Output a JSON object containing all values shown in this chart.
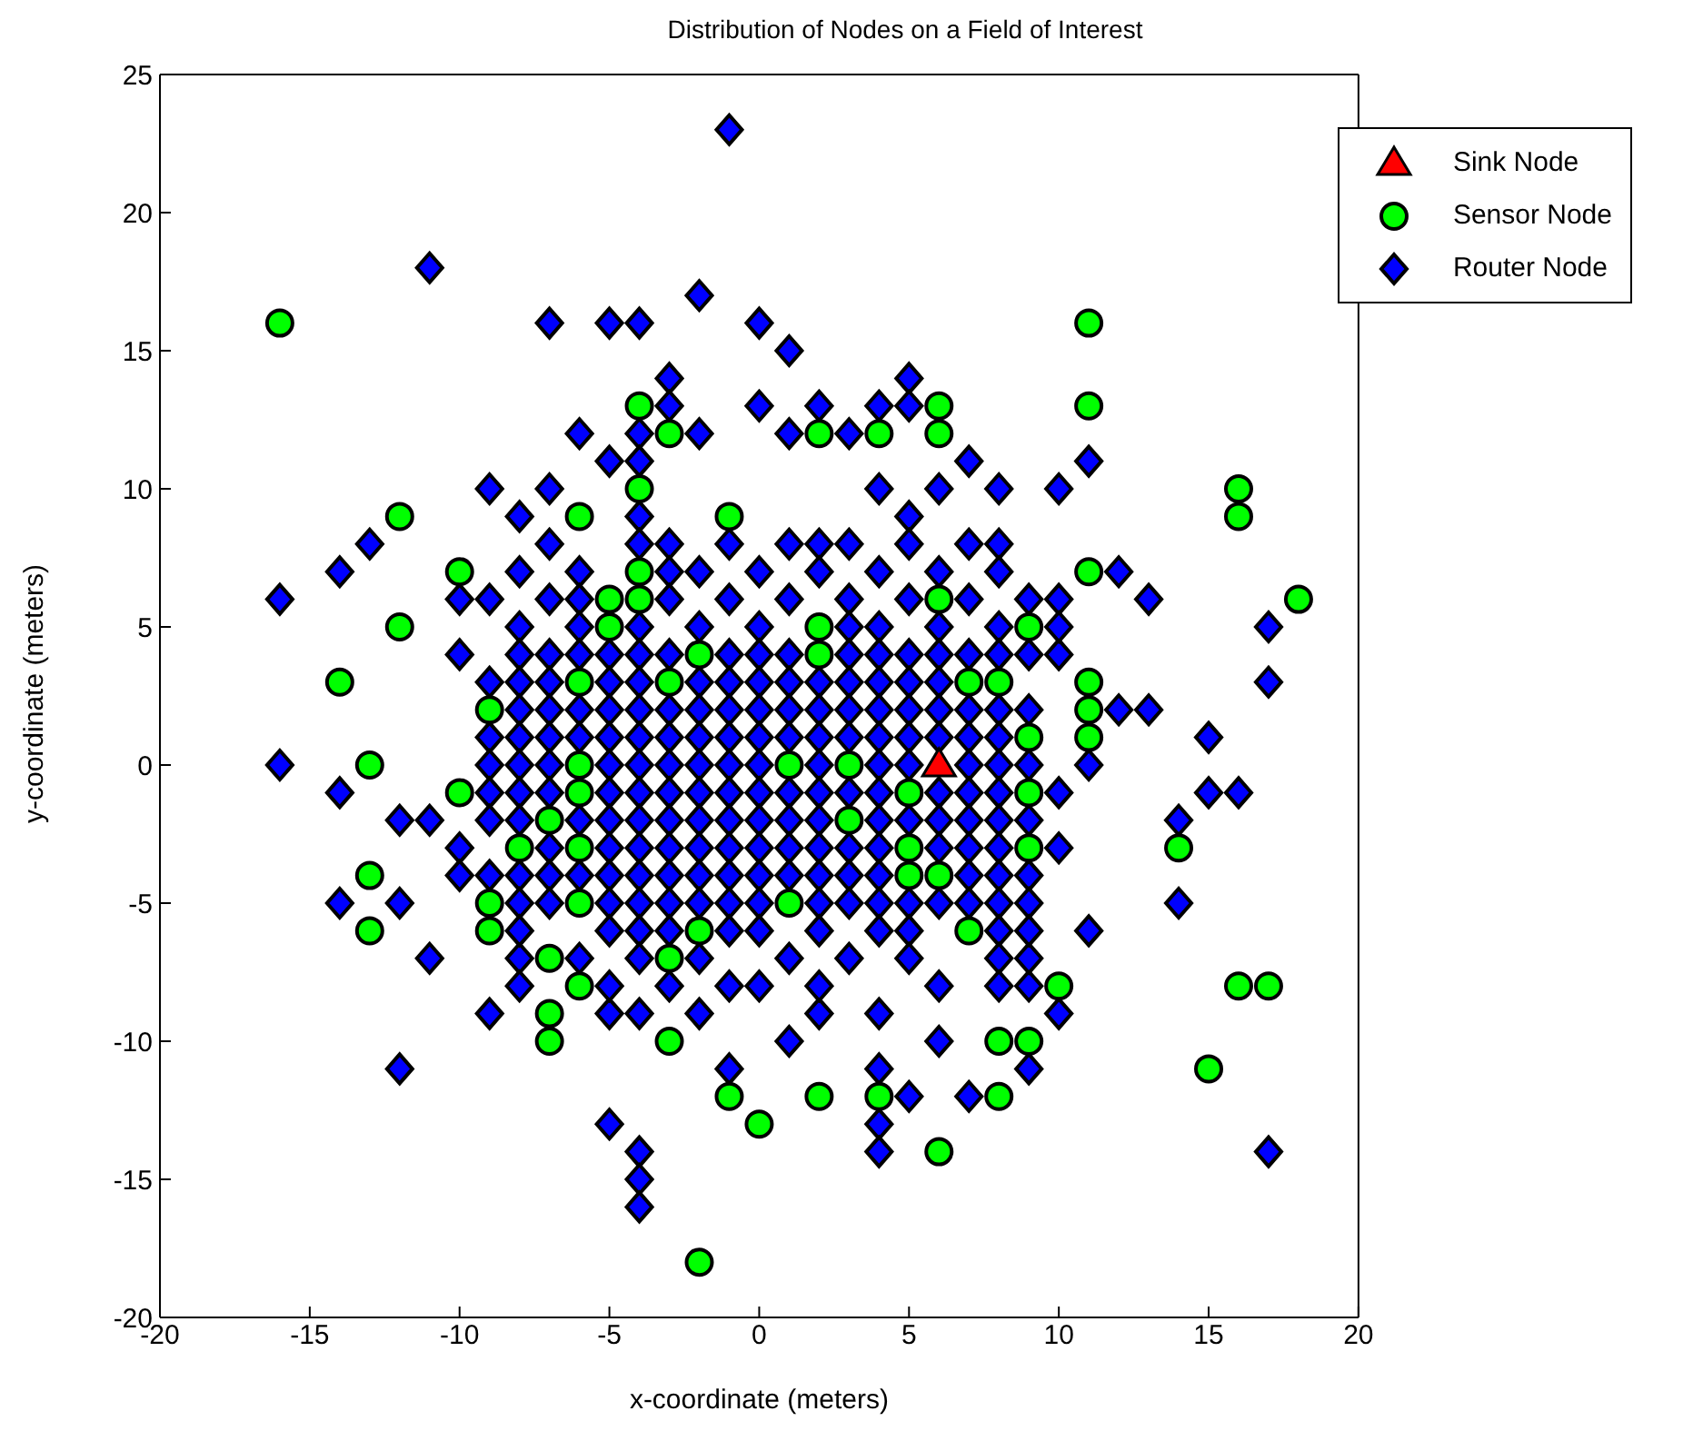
{
  "chart_data": {
    "type": "scatter",
    "title": "Distribution of Nodes on a Field of Interest",
    "xlabel": "x-coordinate (meters)",
    "ylabel": "y-coordinate (meters)",
    "xlim": [
      -20,
      20
    ],
    "xticks": [
      -20,
      -15,
      -10,
      -5,
      0,
      5,
      10,
      15,
      20
    ],
    "ylim": [
      -20,
      25
    ],
    "yticks": [
      -20,
      -15,
      -10,
      -5,
      0,
      5,
      10,
      15,
      20,
      25
    ],
    "grid": false,
    "legend": "top right",
    "series": [
      {
        "name": "Sink Node",
        "color": "#ff0000",
        "marker": "triangle",
        "x": [
          6
        ],
        "values": [
          0
        ]
      },
      {
        "name": "Sensor Node",
        "color": "#00ff00",
        "marker": "circle",
        "x": [
          -16,
          -14,
          -12,
          -12,
          -13,
          -13,
          -13,
          -10,
          -10,
          -9,
          -9,
          -9,
          -8,
          -7,
          -7,
          -7,
          -7,
          -6,
          -6,
          -6,
          -6,
          -6,
          -6,
          -6,
          -5,
          -5,
          -4,
          -4,
          -4,
          -4,
          -3,
          -3,
          -3,
          -3,
          -2,
          -2,
          -2,
          -1,
          -1,
          0,
          1,
          1,
          2,
          2,
          2,
          2,
          3,
          3,
          4,
          4,
          5,
          5,
          5,
          6,
          6,
          6,
          6,
          6,
          7,
          7,
          8,
          8,
          8,
          9,
          9,
          9,
          9,
          9,
          10,
          11,
          11,
          11,
          11,
          11,
          11,
          14,
          15,
          16,
          16,
          16,
          17,
          18
        ],
        "values": [
          16,
          3,
          9,
          5,
          0,
          -4,
          -6,
          7,
          -1,
          2,
          -5,
          -6,
          -3,
          -2,
          -7,
          -9,
          -10,
          9,
          3,
          0,
          -1,
          -3,
          -5,
          -8,
          6,
          5,
          13,
          10,
          7,
          6,
          12,
          3,
          -7,
          -10,
          4,
          -6,
          -18,
          9,
          -12,
          -13,
          0,
          -5,
          12,
          5,
          4,
          -12,
          0,
          -2,
          12,
          -12,
          -1,
          -3,
          -4,
          13,
          12,
          6,
          -4,
          -14,
          3,
          -6,
          3,
          -10,
          -12,
          5,
          1,
          -1,
          -3,
          -10,
          -8,
          16,
          13,
          7,
          3,
          2,
          1,
          -3,
          -11,
          10,
          9,
          -8,
          -8,
          6
        ]
      },
      {
        "name": "Router Node",
        "color": "#0000ff",
        "marker": "diamond",
        "x": [
          -1,
          -11,
          -7,
          -5,
          -4,
          -2,
          0,
          1,
          -16,
          -16,
          -14,
          -13,
          -14,
          -14,
          -12,
          -11,
          -12,
          -12,
          -11,
          -10,
          -10,
          -10,
          -10,
          -9,
          -9,
          -8,
          -8,
          -8,
          -7,
          -7,
          -6,
          -5,
          -5,
          -4,
          -4,
          -4,
          -4,
          -4,
          -4,
          -3,
          -3,
          -2,
          -1,
          0,
          1,
          1,
          2,
          3,
          4,
          4,
          4,
          4,
          4,
          4,
          5,
          5,
          5,
          5,
          6,
          7,
          8,
          8,
          6,
          7,
          9,
          10,
          10,
          11,
          11,
          12,
          12,
          13,
          13,
          14,
          14,
          15,
          15,
          16,
          17,
          17,
          17,
          9,
          10,
          9,
          9,
          10,
          10,
          11,
          10,
          10,
          -9,
          -9,
          -9,
          -9,
          -9,
          -9,
          9,
          9,
          9,
          9,
          9,
          9,
          9,
          -5,
          -4,
          -2,
          2,
          -4,
          -3,
          -1,
          1,
          2,
          3,
          5,
          7,
          -8,
          -6,
          -3,
          -2,
          0,
          2,
          4,
          6,
          8,
          -9,
          -7,
          -6,
          -3,
          -1,
          1,
          3,
          5,
          7,
          -8,
          -6,
          -4,
          -2,
          0,
          3,
          4,
          6,
          8,
          -8,
          -7,
          -6,
          -5,
          -4,
          -3,
          -1,
          0,
          1,
          3,
          4,
          5,
          6,
          7,
          8,
          -8,
          -7,
          -5,
          -4,
          -2,
          -1,
          0,
          1,
          2,
          3,
          4,
          5,
          6,
          -8,
          -7,
          -6,
          -5,
          -4,
          -3,
          -2,
          -1,
          0,
          1,
          2,
          3,
          4,
          5,
          6,
          7,
          8,
          -8,
          -7,
          -6,
          -5,
          -4,
          -3,
          -2,
          -1,
          0,
          1,
          2,
          3,
          4,
          5,
          6,
          7,
          8,
          -8,
          -7,
          -5,
          -4,
          -3,
          -2,
          -1,
          0,
          2,
          4,
          5,
          7,
          8,
          -8,
          -7,
          -5,
          -4,
          -3,
          -2,
          -1,
          0,
          1,
          2,
          3,
          4,
          6,
          7,
          8,
          -8,
          -6,
          -5,
          -4,
          -3,
          -2,
          -1,
          0,
          1,
          2,
          4,
          5,
          6,
          7,
          8,
          -7,
          -5,
          -4,
          -3,
          -2,
          -1,
          0,
          1,
          2,
          3,
          4,
          6,
          7,
          8,
          -8,
          -7,
          -6,
          -5,
          -4,
          -3,
          -2,
          -1,
          0,
          1,
          2,
          3,
          4,
          7,
          8,
          -8,
          -7,
          -5,
          -4,
          -3,
          -2,
          -1,
          0,
          2,
          3,
          4,
          5,
          6,
          7,
          8,
          -8,
          -5,
          -4,
          -3,
          -1,
          0,
          2,
          4,
          5,
          8,
          -6,
          -4,
          -2,
          1,
          3,
          5,
          8,
          -5,
          -3,
          -1,
          0,
          2,
          6,
          8
        ],
        "values": [
          23,
          18,
          16,
          16,
          16,
          17,
          16,
          15,
          6,
          0,
          7,
          8,
          -1,
          -5,
          -2,
          -2,
          -5,
          -11,
          -7,
          6,
          4,
          -3,
          -4,
          10,
          -9,
          9,
          -7,
          -8,
          10,
          8,
          12,
          11,
          -13,
          12,
          11,
          9,
          -14,
          -15,
          -16,
          14,
          13,
          12,
          -11,
          13,
          12,
          -10,
          13,
          12,
          13,
          10,
          -9,
          -11,
          -13,
          -14,
          14,
          13,
          9,
          -12,
          10,
          11,
          10,
          8,
          -10,
          -12,
          6,
          10,
          6,
          11,
          -6,
          7,
          2,
          6,
          2,
          -2,
          -5,
          1,
          -1,
          -1,
          5,
          3,
          -14,
          -11,
          -9,
          -8,
          -7,
          -1,
          -3,
          0,
          4,
          5,
          3,
          1,
          0,
          -1,
          -2,
          -4,
          4,
          2,
          0,
          -2,
          -4,
          -5,
          -6,
          -9,
          -9,
          -9,
          -9,
          8,
          8,
          8,
          8,
          8,
          8,
          8,
          8,
          7,
          7,
          7,
          7,
          7,
          7,
          7,
          7,
          7,
          6,
          6,
          6,
          6,
          6,
          6,
          6,
          6,
          6,
          5,
          5,
          5,
          5,
          5,
          5,
          5,
          5,
          5,
          4,
          4,
          4,
          4,
          4,
          4,
          4,
          4,
          4,
          4,
          4,
          4,
          4,
          4,
          4,
          3,
          3,
          3,
          3,
          3,
          3,
          3,
          3,
          3,
          3,
          3,
          3,
          3,
          2,
          2,
          2,
          2,
          2,
          2,
          2,
          2,
          2,
          2,
          2,
          2,
          2,
          2,
          2,
          2,
          2,
          1,
          1,
          1,
          1,
          1,
          1,
          1,
          1,
          1,
          1,
          1,
          1,
          1,
          1,
          1,
          1,
          1,
          0,
          0,
          0,
          0,
          0,
          0,
          0,
          0,
          0,
          0,
          0,
          0,
          0,
          -1,
          -1,
          -1,
          -1,
          -1,
          -1,
          -1,
          -1,
          -1,
          -1,
          -1,
          -1,
          -1,
          -1,
          -1,
          -2,
          -2,
          -2,
          -2,
          -2,
          -2,
          -2,
          -2,
          -2,
          -2,
          -2,
          -2,
          -2,
          -2,
          -2,
          -3,
          -3,
          -3,
          -3,
          -3,
          -3,
          -3,
          -3,
          -3,
          -3,
          -3,
          -3,
          -3,
          -3,
          -4,
          -4,
          -4,
          -4,
          -4,
          -4,
          -4,
          -4,
          -4,
          -4,
          -4,
          -4,
          -4,
          -4,
          -4,
          -5,
          -5,
          -5,
          -5,
          -5,
          -5,
          -5,
          -5,
          -5,
          -5,
          -5,
          -5,
          -5,
          -5,
          -5,
          -6,
          -6,
          -6,
          -6,
          -6,
          -6,
          -6,
          -6,
          -6,
          -6,
          -7,
          -7,
          -7,
          -7,
          -7,
          -7,
          -7,
          -8,
          -8,
          -8,
          -8,
          -8,
          -8,
          -8
        ]
      }
    ]
  }
}
